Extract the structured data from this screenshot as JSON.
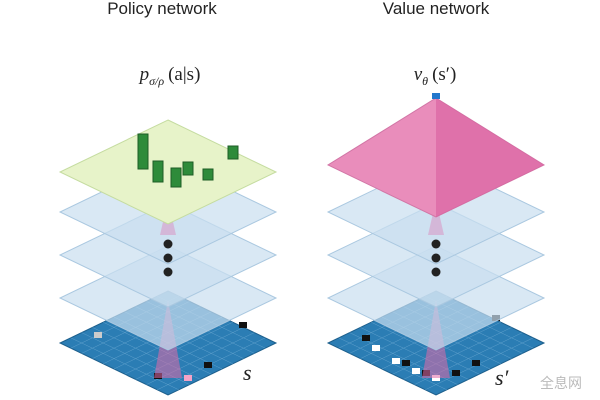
{
  "panels": [
    {
      "title": "Policy network",
      "output": "p",
      "output_sub": "σ/ρ",
      "output_arg": "(a|s)",
      "input": "s"
    },
    {
      "title": "Value network",
      "output": "ν",
      "output_sub": "θ",
      "output_arg": "(s′)",
      "input": "s′"
    }
  ],
  "watermark": "全息网"
}
